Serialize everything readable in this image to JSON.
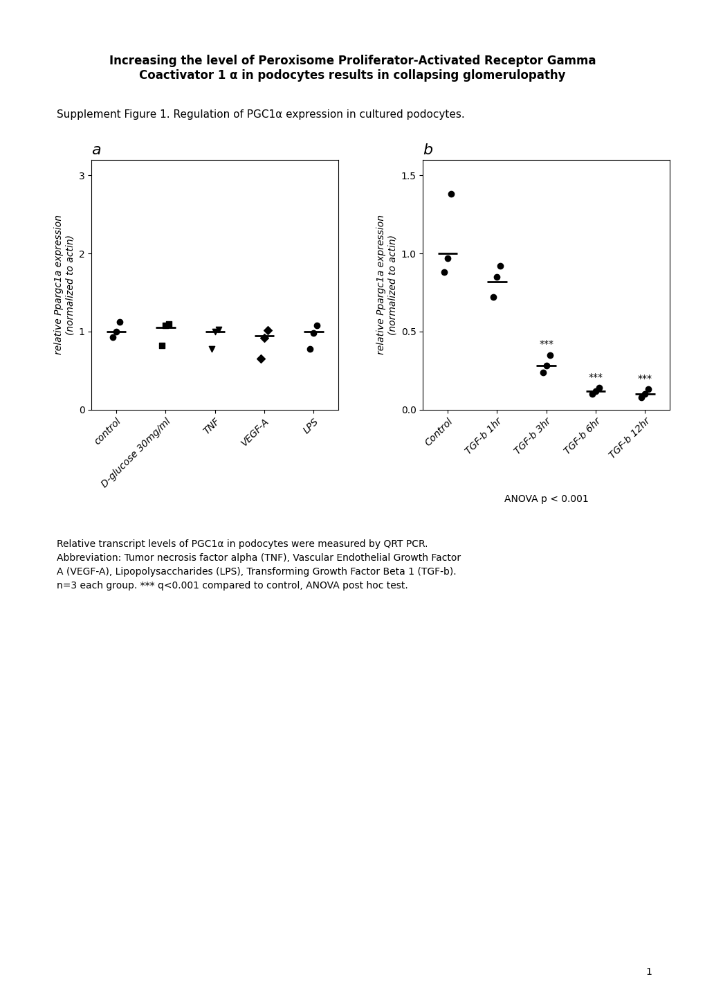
{
  "title": "Increasing the level of Peroxisome Proliferator-Activated Receptor Gamma\nCoactivator 1 α in podocytes results in collapsing glomerulopathy",
  "subtitle": "Supplement Figure 1. Regulation of PGC1α expression in cultured podocytes.",
  "annotations": [
    "Relative transcript levels of PGC1α in podocytes were measured by QRT PCR.\nAbbreviation: Tumor necrosis factor alpha (TNF), Vascular Endothelial Growth Factor\nA (VEGF-A), Lipopolysaccharides (LPS), Transforming Growth Factor Beta 1 (TGF-b).\nn=3 each group. *** q<0.001 compared to control, ANOVA post hoc test.",
    "1"
  ],
  "chart_data": [
    {
      "type": "dot",
      "title": "a",
      "categories": [
        "control",
        "D-glucose 30mg/ml",
        "TNF",
        "VEGF-A",
        "LPS"
      ],
      "values": [
        [
          0.93,
          1.0,
          1.12
        ],
        [
          0.82,
          1.08,
          1.1
        ],
        [
          0.78,
          1.0,
          1.03
        ],
        [
          0.65,
          0.92,
          1.02
        ],
        [
          0.78,
          0.98,
          1.08
        ]
      ],
      "medians": [
        1.0,
        1.05,
        1.0,
        0.95,
        1.0
      ],
      "markers": [
        "circle",
        "square",
        "triangle_down",
        "diamond",
        "circle"
      ],
      "color": "#000000",
      "y_label": "relative Ppargc1a expression\n(normalized to actin)",
      "ylim": [
        0,
        3.2
      ],
      "yticks": [
        0,
        1,
        2,
        3
      ]
    },
    {
      "type": "dot",
      "title": "b",
      "categories": [
        "Control",
        "TGF-b 1hr",
        "TGF-b 3hr",
        "TGF-b 6hr",
        "TGF-b 12hr"
      ],
      "values": [
        [
          0.88,
          0.97,
          1.38
        ],
        [
          0.72,
          0.85,
          0.92
        ],
        [
          0.24,
          0.28,
          0.35
        ],
        [
          0.1,
          0.12,
          0.14
        ],
        [
          0.08,
          0.1,
          0.13
        ]
      ],
      "medians": [
        1.0,
        0.82,
        0.28,
        0.12,
        0.1
      ],
      "markers": [
        "circle",
        "circle",
        "circle",
        "circle",
        "circle"
      ],
      "color": "#000000",
      "sig_labels": [
        null,
        null,
        "***",
        "***",
        "***"
      ],
      "annotations": [
        "ANOVA p < 0.001"
      ],
      "y_label": "relative Ppargc1a expression\n(normalized to actin)",
      "ylim": [
        0.0,
        1.6
      ],
      "yticks": [
        0.0,
        0.5,
        1.0,
        1.5
      ]
    }
  ]
}
